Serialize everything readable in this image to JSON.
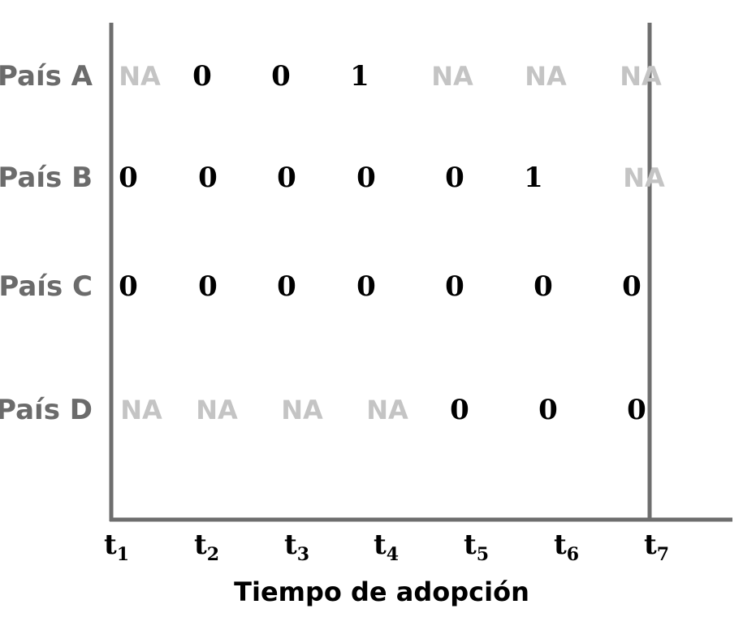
{
  "axis_title": "Tiempo de adopción",
  "ticks": [
    {
      "main": "t",
      "sub": "1"
    },
    {
      "main": "t",
      "sub": "2"
    },
    {
      "main": "t",
      "sub": "3"
    },
    {
      "main": "t",
      "sub": "4"
    },
    {
      "main": "t",
      "sub": "5"
    },
    {
      "main": "t",
      "sub": "6"
    },
    {
      "main": "t",
      "sub": "7"
    }
  ],
  "rows": [
    {
      "label": "País A",
      "cells": [
        "NA",
        "0",
        "0",
        "1",
        "NA",
        "NA",
        "NA"
      ]
    },
    {
      "label": "País B",
      "cells": [
        "0",
        "0",
        "0",
        "0",
        "0",
        "1",
        "NA"
      ]
    },
    {
      "label": "País C",
      "cells": [
        "0",
        "0",
        "0",
        "0",
        "0",
        "0",
        "0"
      ]
    },
    {
      "label": "País D",
      "cells": [
        "NA",
        "NA",
        "NA",
        "NA",
        "0",
        "0",
        "0"
      ]
    }
  ],
  "colors": {
    "axis": "#6e6e6e",
    "label": "#6b6b6b",
    "na": "#c4c4c4",
    "value": "#000000"
  }
}
